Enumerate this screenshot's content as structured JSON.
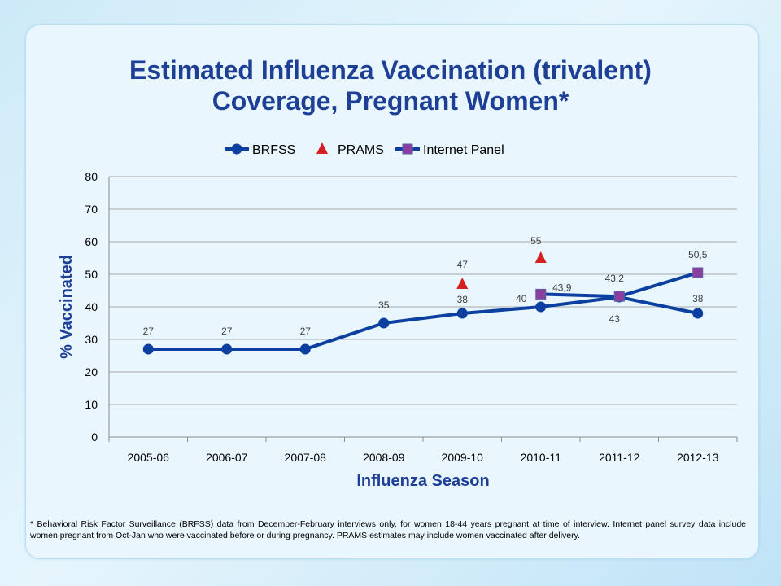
{
  "chart_data": {
    "type": "line",
    "title_lines": [
      "Estimated Influenza Vaccination (trivalent)",
      "Coverage, Pregnant Women*"
    ],
    "xlabel": "Influenza Season",
    "ylabel": "% Vaccinated",
    "categories": [
      "2005-06",
      "2006-07",
      "2007-08",
      "2008-09",
      "2009-10",
      "2010-11",
      "2011-12",
      "2012-13"
    ],
    "ylim": [
      0,
      80
    ],
    "yticks": [
      0,
      10,
      20,
      30,
      40,
      50,
      60,
      70,
      80
    ],
    "grid": true,
    "legend": "top",
    "series": [
      {
        "name": "BRFSS",
        "marker": "circle",
        "line": true,
        "color": "#0b3fa0",
        "values": [
          27,
          27,
          27,
          35,
          38,
          40,
          43,
          38
        ],
        "labels": [
          "27",
          "27",
          "27",
          "35",
          "38",
          "40",
          "43",
          "38"
        ]
      },
      {
        "name": "PRAMS",
        "marker": "triangle",
        "line": false,
        "color": "#d42020",
        "values": [
          null,
          null,
          null,
          null,
          47,
          55,
          null,
          null
        ],
        "labels": [
          null,
          null,
          null,
          null,
          "47",
          "55",
          null,
          null
        ]
      },
      {
        "name": "Internet Panel",
        "marker": "square",
        "line": true,
        "color": "#0b3fa0",
        "marker_fill": "#8a3ea0",
        "values": [
          null,
          null,
          null,
          null,
          null,
          43.9,
          43.2,
          50.5
        ],
        "labels": [
          null,
          null,
          null,
          null,
          null,
          "43,9",
          "43,2",
          "50,5"
        ]
      }
    ],
    "colors": {
      "title": "#1d3f96",
      "axis_label": "#1d3f96",
      "grid": "#a9a9a9",
      "data_label": "#404040"
    }
  },
  "footnote": "* Behavioral Risk Factor Surveillance (BRFSS) data from December-February interviews only, for women 18-44 years pregnant at time of interview. Internet panel survey data include women pregnant from Oct-Jan who were vaccinated before or during pregnancy. PRAMS estimates may include women vaccinated after delivery."
}
